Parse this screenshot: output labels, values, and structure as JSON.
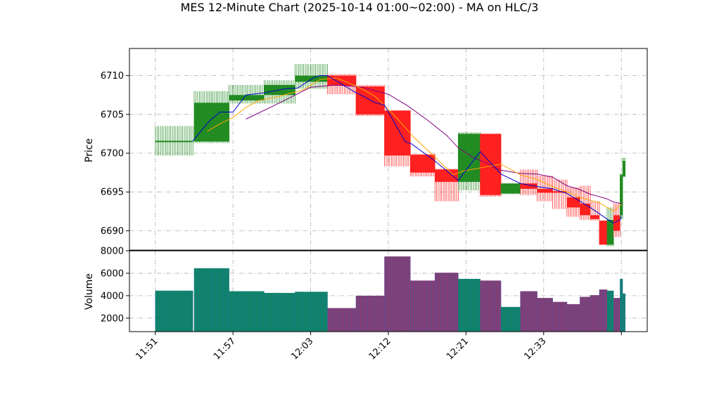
{
  "chart_data": {
    "type": "candlestick",
    "title": "MES 12-Minute Chart (2025-10-14 01:00~02:00) - MA on HLC/3",
    "price_panel": {
      "ylabel": "Price",
      "ylim": [
        6687.5,
        6713.5
      ],
      "yticks": [
        6690,
        6695,
        6700,
        6705,
        6710
      ],
      "grid": true
    },
    "volume_panel": {
      "ylabel": "Volume",
      "ylim": [
        800,
        8000
      ],
      "yticks": [
        2000,
        4000,
        6000,
        8000
      ],
      "grid": true
    },
    "xaxis": {
      "range_minutes": [
        709,
        749
      ],
      "ticks": [
        {
          "label": "11:51",
          "t": 711
        },
        {
          "label": "11:57",
          "t": 717
        },
        {
          "label": "12:03",
          "t": 723
        },
        {
          "label": "12:12",
          "t": 729
        },
        {
          "label": "12:21",
          "t": 735
        },
        {
          "label": "12:33",
          "t": 741
        },
        {
          "label": "",
          "t": 747
        }
      ]
    },
    "colors": {
      "up": "#228B22",
      "down": "#FF2020",
      "ma_short": "#0000CC",
      "ma_mid": "#FFA500",
      "ma_long": "#800080"
    },
    "candles": [
      {
        "t0": 711.0,
        "t1": 713.9,
        "open": 6701.6,
        "close": 6701.6,
        "high": 6703.5,
        "low": 6699.7,
        "volume": 4450
      },
      {
        "t0": 714.0,
        "t1": 715.2,
        "open": 6701.5,
        "close": 6706.5,
        "high": 6708.0,
        "low": 6701.3,
        "volume": 6450
      },
      {
        "t0": 715.2,
        "t1": 716.7,
        "open": 6701.5,
        "close": 6706.5,
        "high": 6708.0,
        "low": 6701.3,
        "volume": 6450
      },
      {
        "t0": 716.7,
        "t1": 719.4,
        "open": 6706.8,
        "close": 6707.5,
        "high": 6708.8,
        "low": 6706.4,
        "volume": 4400
      },
      {
        "t0": 719.4,
        "t1": 721.8,
        "open": 6707.5,
        "close": 6708.8,
        "high": 6709.4,
        "low": 6706.4,
        "volume": 4250
      },
      {
        "t0": 721.8,
        "t1": 724.3,
        "open": 6709.2,
        "close": 6710.0,
        "high": 6711.5,
        "low": 6708.3,
        "volume": 4350
      },
      {
        "t0": 724.3,
        "t1": 726.5,
        "open": 6710.0,
        "close": 6708.7,
        "high": 6710.2,
        "low": 6707.6,
        "volume": 2900
      },
      {
        "t0": 726.5,
        "t1": 728.7,
        "open": 6708.6,
        "close": 6705.0,
        "high": 6708.8,
        "low": 6704.8,
        "volume": 4000
      },
      {
        "t0": 728.7,
        "t1": 730.7,
        "open": 6705.5,
        "close": 6699.7,
        "high": 6705.5,
        "low": 6698.3,
        "volume": 7500
      },
      {
        "t0": 730.7,
        "t1": 732.6,
        "open": 6699.8,
        "close": 6697.5,
        "high": 6699.9,
        "low": 6697.0,
        "volume": 5350
      },
      {
        "t0": 732.6,
        "t1": 734.4,
        "open": 6697.9,
        "close": 6696.3,
        "high": 6698.0,
        "low": 6693.8,
        "volume": 6050
      },
      {
        "t0": 734.4,
        "t1": 736.1,
        "open": 6696.3,
        "close": 6702.5,
        "high": 6702.7,
        "low": 6695.2,
        "volume": 5500
      },
      {
        "t0": 736.1,
        "t1": 737.7,
        "open": 6702.5,
        "close": 6694.6,
        "high": 6702.5,
        "low": 6694.4,
        "volume": 5350
      },
      {
        "t0": 737.7,
        "t1": 739.2,
        "open": 6694.8,
        "close": 6696.1,
        "high": 6696.1,
        "low": 6694.7,
        "volume": 3000
      },
      {
        "t0": 739.2,
        "t1": 740.5,
        "open": 6696.1,
        "close": 6695.4,
        "high": 6697.9,
        "low": 6694.6,
        "volume": 4400
      },
      {
        "t0": 740.5,
        "t1": 741.7,
        "open": 6695.4,
        "close": 6694.9,
        "high": 6697.1,
        "low": 6693.8,
        "volume": 3800
      },
      {
        "t0": 741.7,
        "t1": 742.8,
        "open": 6695.1,
        "close": 6694.9,
        "high": 6696.6,
        "low": 6692.8,
        "volume": 3450
      },
      {
        "t0": 742.8,
        "t1": 743.8,
        "open": 6694.3,
        "close": 6693.0,
        "high": 6695.6,
        "low": 6691.8,
        "volume": 3250
      },
      {
        "t0": 743.8,
        "t1": 744.6,
        "open": 6693.5,
        "close": 6692.0,
        "high": 6695.8,
        "low": 6691.4,
        "volume": 3900
      },
      {
        "t0": 744.6,
        "t1": 745.3,
        "open": 6692.0,
        "close": 6691.5,
        "high": 6693.8,
        "low": 6691.3,
        "volume": 4050
      },
      {
        "t0": 745.3,
        "t1": 745.9,
        "open": 6691.3,
        "close": 6688.2,
        "high": 6691.3,
        "low": 6688.2,
        "volume": 4550
      },
      {
        "t0": 745.9,
        "t1": 746.4,
        "open": 6688.2,
        "close": 6691.4,
        "high": 6693.0,
        "low": 6688.0,
        "volume": 4450
      },
      {
        "t0": 746.4,
        "t1": 746.9,
        "open": 6692.0,
        "close": 6690.0,
        "high": 6693.5,
        "low": 6689.2,
        "volume": 3800
      },
      {
        "t0": 746.9,
        "t1": 747.1,
        "open": 6692.0,
        "close": 6697.2,
        "high": 6697.4,
        "low": 6691.5,
        "volume": 5500
      },
      {
        "t0": 747.1,
        "t1": 747.3,
        "open": 6697.0,
        "close": 6699.0,
        "high": 6699.4,
        "low": 6696.9,
        "volume": 4200
      }
    ],
    "ma_short": [
      [
        713.9,
        6701.6
      ],
      [
        715.2,
        6704.2
      ],
      [
        716.0,
        6705.3
      ],
      [
        717.0,
        6705.3
      ],
      [
        718.0,
        6707.5
      ],
      [
        719.5,
        6707.8
      ],
      [
        721.0,
        6708.3
      ],
      [
        722.0,
        6708.4
      ],
      [
        723.2,
        6709.7
      ],
      [
        723.7,
        6710.0
      ],
      [
        724.3,
        6710.0
      ],
      [
        726.3,
        6708.0
      ],
      [
        728.0,
        6706.5
      ],
      [
        728.7,
        6706.2
      ],
      [
        730.3,
        6701.5
      ],
      [
        730.8,
        6701.2
      ],
      [
        732.6,
        6699.0
      ],
      [
        734.4,
        6696.5
      ],
      [
        736.1,
        6700.2
      ],
      [
        737.7,
        6697.3
      ],
      [
        739.2,
        6696.1
      ],
      [
        740.5,
        6695.7
      ],
      [
        741.7,
        6695.4
      ],
      [
        742.8,
        6694.8
      ],
      [
        744.6,
        6693.0
      ],
      [
        745.9,
        6691.5
      ],
      [
        746.4,
        6691.0
      ],
      [
        746.9,
        6691.4
      ],
      [
        747.0,
        6691.9
      ]
    ],
    "ma_mid": [
      [
        715.0,
        6702.8
      ],
      [
        716.0,
        6703.8
      ],
      [
        717.0,
        6704.6
      ],
      [
        718.0,
        6705.9
      ],
      [
        719.0,
        6706.8
      ],
      [
        720.5,
        6707.3
      ],
      [
        722.5,
        6708.2
      ],
      [
        723.7,
        6709.5
      ],
      [
        725.0,
        6709.7
      ],
      [
        726.6,
        6708.6
      ],
      [
        728.0,
        6707.3
      ],
      [
        729.5,
        6704.8
      ],
      [
        731.0,
        6702.0
      ],
      [
        732.6,
        6699.5
      ],
      [
        734.0,
        6697.2
      ],
      [
        734.8,
        6697.7
      ],
      [
        736.1,
        6698.1
      ],
      [
        737.7,
        6698.6
      ],
      [
        739.2,
        6697.2
      ],
      [
        740.5,
        6696.6
      ],
      [
        741.7,
        6695.7
      ],
      [
        742.8,
        6695.0
      ],
      [
        743.8,
        6694.3
      ],
      [
        745.3,
        6693.6
      ],
      [
        746.4,
        6692.5
      ],
      [
        747.0,
        6693.4
      ]
    ],
    "ma_long": [
      [
        718.0,
        6704.4
      ],
      [
        720.0,
        6706.0
      ],
      [
        721.2,
        6707.0
      ],
      [
        723.0,
        6708.5
      ],
      [
        725.0,
        6708.8
      ],
      [
        727.0,
        6708.5
      ],
      [
        729.0,
        6707.6
      ],
      [
        730.5,
        6706.1
      ],
      [
        732.0,
        6704.3
      ],
      [
        733.5,
        6702.3
      ],
      [
        734.4,
        6700.7
      ],
      [
        735.5,
        6699.5
      ],
      [
        736.5,
        6698.8
      ],
      [
        737.7,
        6697.8
      ],
      [
        739.2,
        6697.4
      ],
      [
        740.5,
        6697.3
      ],
      [
        741.7,
        6696.9
      ],
      [
        742.8,
        6695.8
      ],
      [
        743.8,
        6695.3
      ],
      [
        744.6,
        6694.7
      ],
      [
        745.3,
        6694.4
      ],
      [
        745.9,
        6694.1
      ],
      [
        746.4,
        6693.7
      ],
      [
        747.0,
        6693.5
      ]
    ]
  }
}
